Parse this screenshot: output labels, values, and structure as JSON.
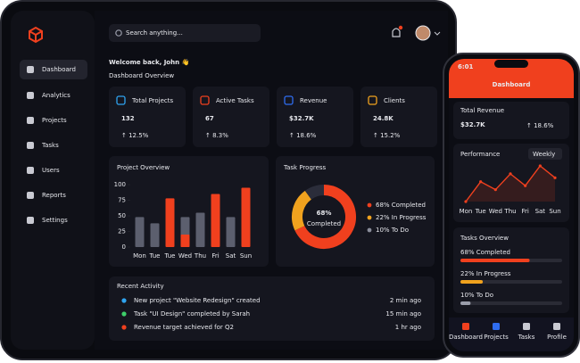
{
  "tablet": {
    "search_placeholder": "Search anything...",
    "nav": [
      "Dashboard",
      "Analytics",
      "Projects",
      "Tasks",
      "Users",
      "Reports",
      "Settings"
    ],
    "welcome": "Welcome back, John 👋",
    "subtitle": "Dashboard Overview",
    "stats": [
      {
        "label": "Total Projects",
        "value": "132",
        "change": "↑ 12.5%",
        "trend_color": "#3ecf6a"
      },
      {
        "label": "Active Tasks",
        "value": "67",
        "change": "↑ 8.3%",
        "trend_color": "#ff4a3a"
      },
      {
        "label": "Revenue",
        "value": "$32.7K",
        "change": "↑ 18.6%",
        "trend_color": "#3ecf6a"
      },
      {
        "label": "Clients",
        "value": "24.8K",
        "change": "↑ 15.2%",
        "trend_color": "#3ecf6a"
      }
    ],
    "project_overview": {
      "type": "bar",
      "title": "Project Overview",
      "categories": [
        "Mon",
        "Tue",
        "Tue",
        "Wed",
        "Thu",
        "Fri",
        "Sat",
        "Sun"
      ],
      "series": [
        {
          "color": "#5c5f6e",
          "values": [
            48,
            38,
            null,
            48,
            55,
            null,
            48,
            null
          ]
        },
        {
          "color": "#f0401e",
          "values": [
            null,
            null,
            78,
            20,
            null,
            85,
            null,
            95
          ]
        }
      ],
      "ylim": [
        0,
        100
      ],
      "yticks": [
        0,
        25,
        50,
        75,
        100
      ]
    },
    "task_progress": {
      "type": "pie",
      "title": "Task Progress",
      "center_value": "68%",
      "center_label": "Completed",
      "categories": [
        "68% Completed",
        "22% In Progress",
        "10% To Do"
      ],
      "values": [
        68,
        22,
        10
      ],
      "colors": [
        "#f0401e",
        "#f0a21e",
        "#2b2d3a"
      ],
      "legend_colors": [
        "#f0401e",
        "#f0a21e",
        "#8a8d9a"
      ]
    },
    "recent_activity": {
      "title": "Recent Activity",
      "items": [
        {
          "text": "New project \"Website Redesign\" created",
          "time": "2 min ago",
          "color": "#2fa4f0"
        },
        {
          "text": "Task \"UI Design\" completed by Sarah",
          "time": "15 min ago",
          "color": "#3ecf6a"
        },
        {
          "text": "Revenue target achieved for Q2",
          "time": "1 hr ago",
          "color": "#f0401e"
        }
      ]
    }
  },
  "phone": {
    "status_time": "6:01",
    "header": "Dashboard",
    "revenue_label": "Total Revenue",
    "revenue_value": "$32.7K",
    "revenue_change": "↑ 18.6%",
    "performance": {
      "type": "line",
      "title": "Performance",
      "period": "Weekly",
      "categories": [
        "Mon",
        "Tue",
        "Wed",
        "Thu",
        "Fri",
        "Sat",
        "Sun"
      ],
      "values": [
        40,
        65,
        55,
        75,
        60,
        85,
        70
      ],
      "color": "#f0401e"
    },
    "tasks_overview": {
      "title": "Tasks Overview",
      "labels": [
        "68% Completed",
        "22% In Progress",
        "10% To Do"
      ],
      "values": [
        68,
        22,
        10
      ],
      "colors": [
        "#f0401e",
        "#f0a21e",
        "#9a9daa"
      ]
    },
    "tabs": [
      "Dashboard",
      "Projects",
      "Tasks",
      "Profile"
    ]
  }
}
